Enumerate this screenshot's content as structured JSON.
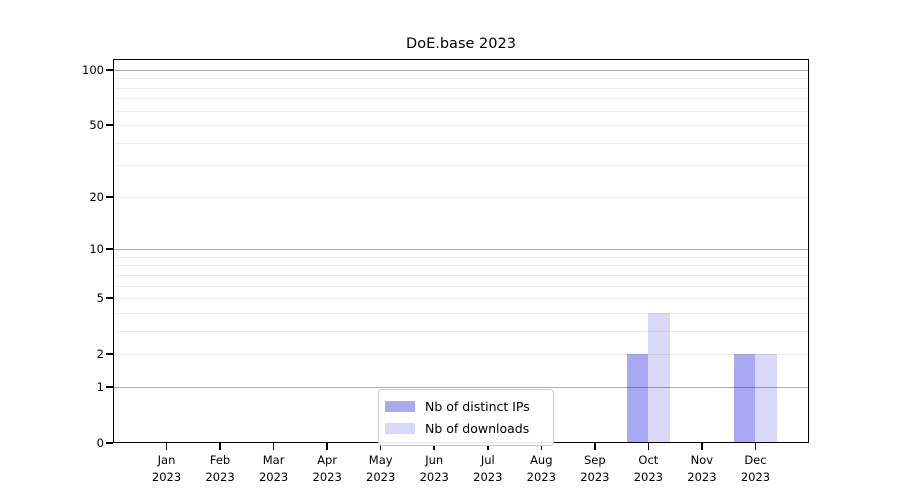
{
  "title": "DoE.base 2023",
  "chart_data": {
    "type": "bar",
    "title": "DoE.base 2023",
    "categories": [
      "Jan",
      "Feb",
      "Mar",
      "Apr",
      "May",
      "Jun",
      "Jul",
      "Aug",
      "Sep",
      "Oct",
      "Nov",
      "Dec"
    ],
    "year_label": "2023",
    "series": [
      {
        "name": "Nb of distinct IPs",
        "color": "#a9a9f3",
        "values": [
          0,
          0,
          0,
          0,
          0,
          0,
          0,
          0,
          0,
          2,
          0,
          2
        ]
      },
      {
        "name": "Nb of downloads",
        "color": "#d9d9f7",
        "values": [
          0,
          0,
          0,
          0,
          0,
          0,
          0,
          0,
          0,
          4,
          0,
          2
        ]
      }
    ],
    "yscale": "log1p",
    "ylim": [
      0,
      100
    ],
    "y_ticks": [
      0,
      1,
      2,
      5,
      10,
      20,
      50,
      100
    ],
    "y_major_gridlines": [
      1,
      10,
      100
    ],
    "y_minor_gridlines": [
      2,
      3,
      4,
      5,
      6,
      7,
      8,
      9,
      20,
      30,
      40,
      50,
      60,
      70,
      80,
      90
    ],
    "grid": true,
    "legend_position": "lower center",
    "bar_width_fraction": 0.4
  },
  "colors": {
    "grid_major": "rgba(0,0,0,0.32)",
    "grid_minor": "rgba(0,0,0,0.08)",
    "axis": "#000000",
    "background": "#ffffff"
  }
}
